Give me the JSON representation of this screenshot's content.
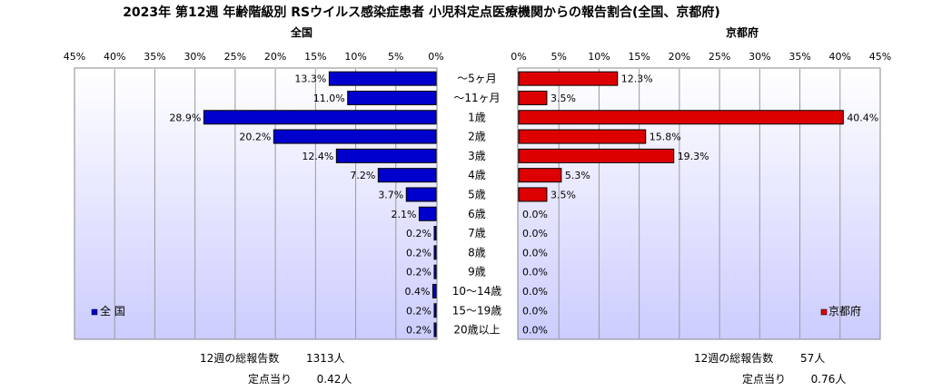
{
  "title": "2023年 第12週 年齢階級別 RSウイルス感染症患者 小児科定点医療機関からの報告割合(全国、京都府)",
  "colors": {
    "national": "#0000cc",
    "kyoto": "#dd0000",
    "plot_top": "#ffffff",
    "plot_bottom": "#ccccff"
  },
  "chart_data": {
    "type": "bar",
    "orientation": "horizontal-butterfly",
    "categories": [
      "～5ヶ月",
      "～11ヶ月",
      "1歳",
      "2歳",
      "3歳",
      "4歳",
      "5歳",
      "6歳",
      "7歳",
      "8歳",
      "9歳",
      "10～14歳",
      "15～19歳",
      "20歳以上"
    ],
    "xlim": [
      0,
      45
    ],
    "tick_labels": [
      "0%",
      "5%",
      "10%",
      "15%",
      "20%",
      "25%",
      "30%",
      "35%",
      "40%",
      "45%"
    ],
    "series": [
      {
        "name": "全 国",
        "panel_title": "全国",
        "legend": "全 国",
        "values": [
          13.3,
          11.0,
          28.9,
          20.2,
          12.4,
          7.2,
          3.7,
          2.1,
          0.2,
          0.2,
          0.2,
          0.4,
          0.2,
          0.2
        ],
        "value_labels": [
          "13.3%",
          "11.0%",
          "28.9%",
          "20.2%",
          "12.4%",
          "7.2%",
          "3.7%",
          "2.1%",
          "0.2%",
          "0.2%",
          "0.2%",
          "0.4%",
          "0.2%",
          "0.2%"
        ]
      },
      {
        "name": "京都府",
        "panel_title": "京都府",
        "legend": "京都府",
        "values": [
          12.3,
          3.5,
          40.4,
          15.8,
          19.3,
          5.3,
          3.5,
          0.0,
          0.0,
          0.0,
          0.0,
          0.0,
          0.0,
          0.0
        ],
        "value_labels": [
          "12.3%",
          "3.5%",
          "40.4%",
          "15.8%",
          "19.3%",
          "5.3%",
          "3.5%",
          "0.0%",
          "0.0%",
          "0.0%",
          "0.0%",
          "0.0%",
          "0.0%",
          "0.0%"
        ]
      }
    ],
    "grid": true
  },
  "footer": {
    "national": {
      "total_label": "12週の総報告数",
      "total_value": "1313人",
      "per_label": "定点当り",
      "per_value": "0.42人"
    },
    "kyoto": {
      "total_label": "12週の総報告数",
      "total_value": "57人",
      "per_label": "定点当り",
      "per_value": "0.76人"
    }
  }
}
